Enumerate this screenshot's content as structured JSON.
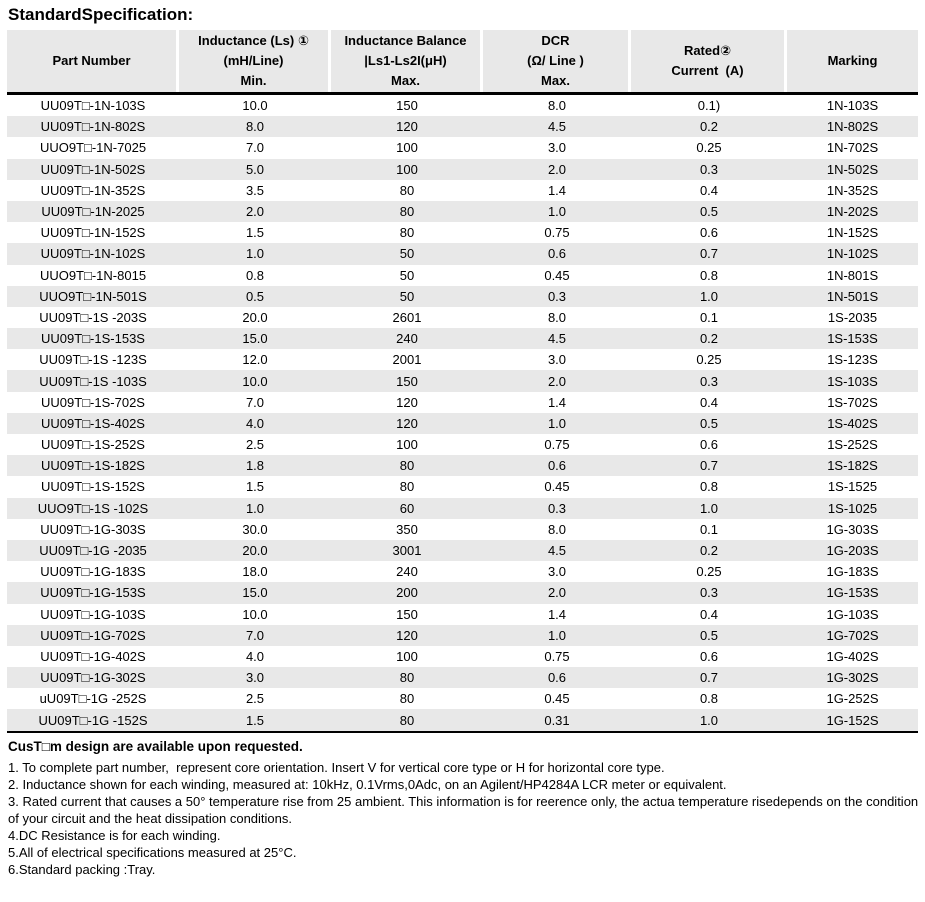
{
  "page": {
    "title": "StandardSpecification:"
  },
  "colors": {
    "stripe": "#e8e8e8",
    "rule": "#000000",
    "background": "#ffffff"
  },
  "table": {
    "columns": [
      {
        "lines": [
          "Part Number"
        ]
      },
      {
        "lines": [
          "Inductance (Ls) ①",
          "(mH/Line)",
          "Min."
        ]
      },
      {
        "lines": [
          "Inductance Balance",
          "|Ls1-Ls2I(μH)",
          "Max."
        ]
      },
      {
        "lines": [
          "DCR",
          "(Ω/ Line )",
          "Max."
        ]
      },
      {
        "lines": [
          "Rated②",
          "Current  (A)"
        ]
      },
      {
        "lines": [
          "Marking"
        ]
      }
    ],
    "rows": [
      [
        "UU09T□-1N-103S",
        "10.0",
        "150",
        "8.0",
        "0.1)",
        "1N-103S"
      ],
      [
        "UU09T□-1N-802S",
        "8.0",
        "120",
        "4.5",
        "0.2",
        "1N-802S"
      ],
      [
        "UUO9T□-1N-7025",
        "7.0",
        "100",
        "3.0",
        "0.25",
        "1N-702S"
      ],
      [
        "UU09T□-1N-502S",
        "5.0",
        "100",
        "2.0",
        "0.3",
        "1N-502S"
      ],
      [
        "UU09T□-1N-352S",
        "3.5",
        "80",
        "1.4",
        "0.4",
        "1N-352S"
      ],
      [
        "UU09T□-1N-2025",
        "2.0",
        "80",
        "1.0",
        "0.5",
        "1N-202S"
      ],
      [
        "UU09T□-1N-152S",
        "1.5",
        "80",
        "0.75",
        "0.6",
        "1N-152S"
      ],
      [
        "UU09T□-1N-102S",
        "1.0",
        "50",
        "0.6",
        "0.7",
        "1N-102S"
      ],
      [
        "UUO9T□-1N-8015",
        "0.8",
        "50",
        "0.45",
        "0.8",
        "1N-801S"
      ],
      [
        "UUO9T□-1N-501S",
        "0.5",
        "50",
        "0.3",
        "1.0",
        "1N-501S"
      ],
      [
        "UU09T□-1S -203S",
        "20.0",
        "2601",
        "8.0",
        "0.1",
        "1S-2035"
      ],
      [
        "UU09T□-1S-153S",
        "15.0",
        "240",
        "4.5",
        "0.2",
        "1S-153S"
      ],
      [
        "UU09T□-1S -123S",
        "12.0",
        "2001",
        "3.0",
        "0.25",
        "1S-123S"
      ],
      [
        "UU09T□-1S -103S",
        "10.0",
        "150",
        "2.0",
        "0.3",
        "1S-103S"
      ],
      [
        "UU09T□-1S-702S",
        "7.0",
        "120",
        "1.4",
        "0.4",
        "1S-702S"
      ],
      [
        "UU09T□-1S-402S",
        "4.0",
        "120",
        "1.0",
        "0.5",
        "1S-402S"
      ],
      [
        "UU09T□-1S-252S",
        "2.5",
        "100",
        "0.75",
        "0.6",
        "1S-252S"
      ],
      [
        "UU09T□-1S-182S",
        "1.8",
        "80",
        "0.6",
        "0.7",
        "1S-182S"
      ],
      [
        "UU09T□-1S-152S",
        "1.5",
        "80",
        "0.45",
        "0.8",
        "1S-1525"
      ],
      [
        "UUO9T□-1S -102S",
        "1.0",
        "60",
        "0.3",
        "1.0",
        "1S-1025"
      ],
      [
        "UU09T□-1G-303S",
        "30.0",
        "350",
        "8.0",
        "0.1",
        "1G-303S"
      ],
      [
        "UU09T□-1G -2035",
        "20.0",
        "3001",
        "4.5",
        "0.2",
        "1G-203S"
      ],
      [
        "UU09T□-1G-183S",
        "18.0",
        "240",
        "3.0",
        "0.25",
        "1G-183S"
      ],
      [
        "UU09T□-1G-153S",
        "15.0",
        "200",
        "2.0",
        "0.3",
        "1G-153S"
      ],
      [
        "UU09T□-1G-103S",
        "10.0",
        "150",
        "1.4",
        "0.4",
        "1G-103S"
      ],
      [
        "UU09T□-1G-702S",
        "7.0",
        "120",
        "1.0",
        "0.5",
        "1G-702S"
      ],
      [
        "UU09T□-1G-402S",
        "4.0",
        "100",
        "0.75",
        "0.6",
        "1G-402S"
      ],
      [
        "UU09T□-1G-302S",
        "3.0",
        "80",
        "0.6",
        "0.7",
        "1G-302S"
      ],
      [
        "uU09T□-1G -252S",
        "2.5",
        "80",
        "0.45",
        "0.8",
        "1G-252S"
      ],
      [
        "UU09T□-1G -152S",
        "1.5",
        "80",
        "0.31",
        "1.0",
        "1G-152S"
      ]
    ]
  },
  "notes": {
    "custom": "CusT□m design are available upon requested.",
    "items": [
      "1. To complete part number,  represent core orientation. Insert V for vertical core type or H for horizontal core type.",
      "2. Inductance shown for each winding, measured at: 10kHz, 0.1Vrms,0Adc, on an Agilent/HP4284A LCR meter or equivalent.",
      "3. Rated current that causes a 50° temperature rise from 25 ambient. This information is for reerence only, the actua temperature risedepends on the condition of your circuit and the heat dissipation conditions.",
      "4.DC Resistance is for each winding.",
      "5.All of electrical specifications measured at 25°C.",
      "6.Standard packing :Tray."
    ]
  }
}
